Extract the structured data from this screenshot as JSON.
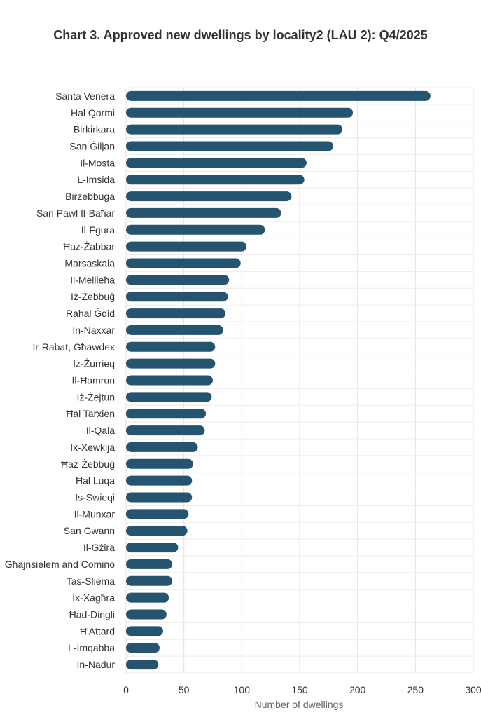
{
  "chart_data": {
    "type": "bar",
    "orientation": "horizontal",
    "title": "Chart 3. Approved new dwellings by locality2 (LAU 2): Q4/2025",
    "xlabel": "Number of dwellings",
    "ylabel": "",
    "xlim": [
      0,
      300
    ],
    "xticks": [
      "0",
      "50",
      "100",
      "150",
      "200",
      "250",
      "300"
    ],
    "grid": true,
    "bar_color": "#245470",
    "categories": [
      "Santa Venera",
      "Ħal Qormi",
      "Birkirkara",
      "San Ġiljan",
      "Il-Mosta",
      "L-Imsida",
      "Birżebbuġa",
      "San Pawl Il-Baħar",
      "Il-Fgura",
      "Ħaż-Żabbar",
      "Marsaskala",
      "Il-Mellieħa",
      "Iż-Żebbuġ",
      "Raħal Ġdid",
      "In-Naxxar",
      "Ir-Rabat, Għawdex",
      "Iż-Żurrieq",
      "Il-Ħamrun",
      "Iż-Żejtun",
      "Ħal Tarxien",
      "Il-Qala",
      "Ix-Xewkija",
      "Ħaż-Żebbuġ",
      "Ħal Luqa",
      "Is-Swieqi",
      "Il-Munxar",
      "San Ġwann",
      "Il-Gżira",
      "Għajnsielem and Comino",
      "Tas-Sliema",
      "Ix-Xagħra",
      "Ħad-Dingli",
      "Ħ'Attard",
      "L-Imqabba",
      "In-Nadur"
    ],
    "values": [
      263,
      196,
      187,
      179,
      156,
      154,
      143,
      134,
      120,
      104,
      99,
      89,
      88,
      86,
      84,
      77,
      77,
      75,
      74,
      69,
      68,
      62,
      58,
      57,
      57,
      54,
      53,
      45,
      40,
      40,
      37,
      35,
      32,
      29,
      28
    ]
  }
}
